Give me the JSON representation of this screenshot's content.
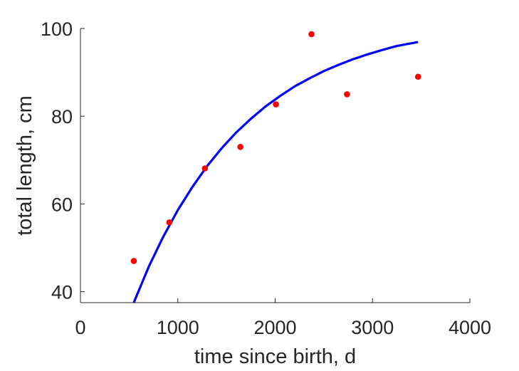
{
  "chart_data": {
    "type": "scatter",
    "title": "",
    "xlabel": "time since birth, d",
    "ylabel": "total length, cm",
    "xlim": [
      0,
      4000
    ],
    "ylim": [
      37.5,
      100
    ],
    "xticks": [
      0,
      1000,
      2000,
      3000,
      4000
    ],
    "yticks": [
      40,
      60,
      80,
      100
    ],
    "grid": false,
    "series": [
      {
        "kind": "points",
        "color": "#ff0000",
        "x": [
          548,
          913,
          1278,
          1643,
          2008,
          2373,
          2738,
          3468
        ],
        "y": [
          47,
          55.8,
          68.1,
          73.0,
          82.7,
          98.7,
          85.0,
          89.0
        ]
      },
      {
        "kind": "line",
        "color": "#0000ff",
        "x": [
          548,
          700,
          850,
          1000,
          1150,
          1300,
          1450,
          1600,
          1750,
          1900,
          2050,
          2200,
          2350,
          2500,
          2650,
          2800,
          2950,
          3100,
          3250,
          3468
        ],
        "y": [
          37.5,
          45.6,
          52.5,
          58.6,
          63.9,
          68.6,
          72.7,
          76.3,
          79.4,
          82.2,
          84.6,
          86.8,
          88.6,
          90.3,
          91.7,
          93.0,
          94.1,
          95.1,
          96.0,
          96.9
        ]
      }
    ]
  }
}
